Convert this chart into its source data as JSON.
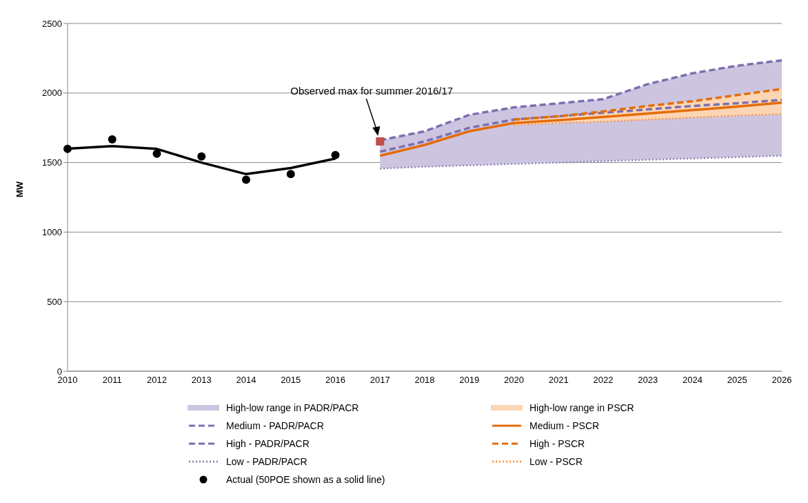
{
  "chart_data": {
    "type": "line",
    "ylabel": "MW",
    "categories": [
      "2010",
      "2011",
      "2012",
      "2013",
      "2014",
      "2015",
      "2016",
      "2017",
      "2018",
      "2019",
      "2020",
      "2021",
      "2022",
      "2023",
      "2024",
      "2025",
      "2026"
    ],
    "ylim": [
      0,
      2500
    ],
    "yticks": [
      0,
      500,
      1000,
      1500,
      2000,
      2500
    ],
    "grid": "y",
    "legend": "bottom",
    "annotations": [
      "Observed max for summer 2016/17"
    ],
    "series": [
      {
        "name": "High-low range in PADR/PACR",
        "type": "area",
        "color": "#cdc5e0",
        "values": [
          null,
          null,
          null,
          null,
          null,
          null,
          null,
          null,
          null,
          null,
          null,
          null,
          null,
          null,
          null,
          null,
          null
        ],
        "lower": [
          null,
          null,
          null,
          null,
          null,
          null,
          null,
          1456,
          1470,
          1480,
          1490,
          1500,
          1510,
          1520,
          1529,
          1539,
          1549
        ],
        "upper": [
          null,
          null,
          null,
          null,
          null,
          null,
          null,
          1660,
          1725,
          1843,
          1897,
          1926,
          1956,
          2064,
          2142,
          2196,
          2235
        ]
      },
      {
        "name": "Medium - PADR/PACR",
        "type": "line",
        "color": "#7b6fae",
        "line_style": "dashed",
        "values": [
          null,
          null,
          null,
          null,
          null,
          null,
          null,
          1578,
          1652,
          1750,
          1809,
          1833,
          1858,
          1882,
          1907,
          1926,
          1951
        ]
      },
      {
        "name": "High - PADR/PACR",
        "type": "line",
        "color": "#7b6fae",
        "line_style": "dashed",
        "values": [
          null,
          null,
          null,
          null,
          null,
          null,
          null,
          1660,
          1725,
          1843,
          1897,
          1926,
          1956,
          2064,
          2142,
          2196,
          2235
        ]
      },
      {
        "name": "Low - PADR/PACR",
        "type": "line",
        "color": "#8f86b8",
        "line_style": "dotted",
        "values": [
          null,
          null,
          null,
          null,
          null,
          null,
          null,
          1456,
          1470,
          1480,
          1490,
          1500,
          1510,
          1520,
          1529,
          1539,
          1549
        ]
      },
      {
        "name": "Actual (50POE shown as a solid line)",
        "type": "scatter",
        "color": "#000000",
        "marker": "circle",
        "values": [
          1598,
          1667,
          1564,
          1544,
          1377,
          1417,
          1554,
          null,
          null,
          null,
          null,
          null,
          null,
          null,
          null,
          null,
          null
        ]
      },
      {
        "name": "High-low range in PSCR",
        "type": "area",
        "color": "#fcd5b4",
        "values": [
          null,
          null,
          null,
          null,
          null,
          null,
          null,
          null,
          null,
          null,
          null,
          null,
          null,
          null,
          null,
          null,
          null
        ],
        "lower": [
          null,
          null,
          null,
          null,
          null,
          null,
          null,
          null,
          null,
          null,
          1770,
          1784,
          1794,
          1809,
          1824,
          1838,
          1848
        ],
        "upper": [
          null,
          null,
          null,
          null,
          null,
          null,
          null,
          null,
          null,
          null,
          1809,
          1833,
          1868,
          1907,
          1941,
          1985,
          2029
        ]
      },
      {
        "name": "Medium - PSCR",
        "type": "line",
        "color": "#e46c0a",
        "line_style": "solid",
        "values": [
          null,
          null,
          null,
          null,
          null,
          null,
          null,
          1549,
          1627,
          1725,
          1784,
          1804,
          1828,
          1853,
          1877,
          1902,
          1931
        ]
      },
      {
        "name": "High - PSCR",
        "type": "line",
        "color": "#e46c0a",
        "line_style": "dashed",
        "values": [
          null,
          null,
          null,
          null,
          null,
          null,
          null,
          null,
          null,
          null,
          1809,
          1833,
          1868,
          1907,
          1941,
          1985,
          2029
        ]
      },
      {
        "name": "Low - PSCR",
        "type": "line",
        "color": "#f79646",
        "line_style": "dotted",
        "values": [
          null,
          null,
          null,
          null,
          null,
          null,
          null,
          null,
          null,
          null,
          1770,
          1784,
          1794,
          1809,
          1824,
          1838,
          1848
        ]
      },
      {
        "color": "#000000",
        "line_style": "solid",
        "values": [
          1600,
          1618,
          1598,
          1500,
          1417,
          1461,
          1529,
          null,
          null,
          null,
          null,
          null,
          null,
          null,
          null,
          null,
          null
        ]
      },
      {
        "color": "#c0504d",
        "type": "scatter",
        "marker": "square",
        "values": [
          null,
          null,
          null,
          null,
          null,
          null,
          null,
          1652,
          null,
          null,
          null,
          null,
          null,
          null,
          null,
          null,
          null
        ]
      }
    ]
  }
}
